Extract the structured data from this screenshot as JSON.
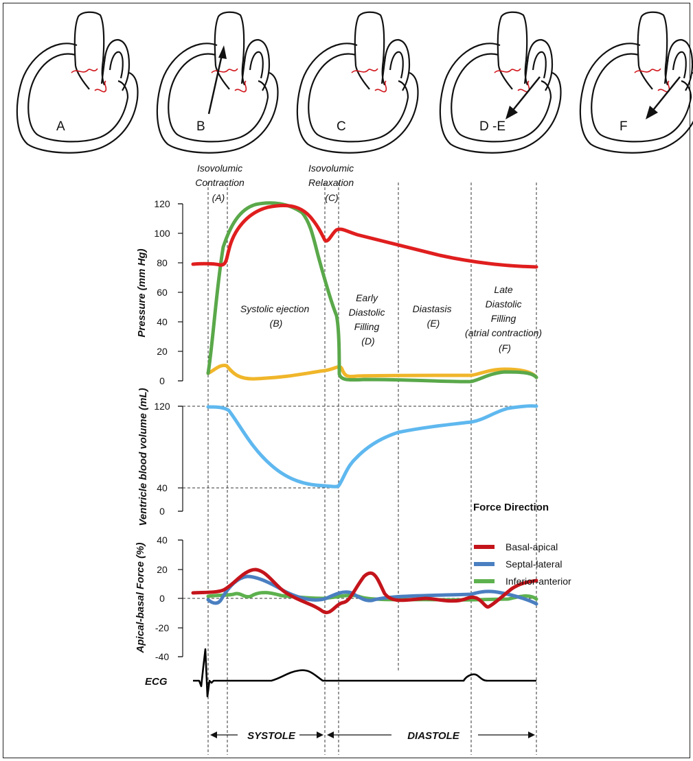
{
  "hearts": [
    {
      "label": "A",
      "arrow": "none"
    },
    {
      "label": "B",
      "arrow": "up"
    },
    {
      "label": "C",
      "arrow": "none"
    },
    {
      "label": "D -E",
      "arrow": "down"
    },
    {
      "label": "F",
      "arrow": "down"
    }
  ],
  "phases": {
    "isovolumic_contraction": [
      "Isovolumic",
      "Contraction",
      "(A)"
    ],
    "isovolumic_relaxation": [
      "Isovolumic",
      "Relaxation",
      "(C)"
    ],
    "systolic_ejection": [
      "Systolic ejection",
      "(B)"
    ],
    "early_diastolic": [
      "Early",
      "Diastolic",
      "Filling",
      "(D)"
    ],
    "diastasis": [
      "Diastasis",
      "(E)"
    ],
    "late_diastolic": [
      "Late",
      "Diastolic",
      "Filling",
      "(atrial contraction)",
      "(F)"
    ]
  },
  "pressure": {
    "ylabel": "Pressure (mm Hg)",
    "ticks": [
      "120",
      "100",
      "80",
      "60",
      "40",
      "20",
      "0"
    ]
  },
  "volume": {
    "ylabel": "Ventricle blood volume (mL)",
    "ticks": [
      "120",
      "40",
      "0"
    ]
  },
  "force": {
    "ylabel": "Apical-basal Force (%)",
    "ticks": [
      "40",
      "20",
      "0",
      "-20",
      "-40"
    ],
    "legend_title": "Force Direction",
    "legend": [
      {
        "name": "Basal-apical",
        "color": "#c4141b"
      },
      {
        "name": "Septal-lateral",
        "color": "#4a7fc1"
      },
      {
        "name": "Inferior-anterior",
        "color": "#5db14e"
      }
    ]
  },
  "ecg_label": "ECG",
  "cycle": {
    "systole": "SYSTOLE",
    "diastole": "DIASTOLE"
  },
  "colors": {
    "aortic_pressure": "#e01e1e",
    "ventricular_pressure": "#5aa84a",
    "atrial_pressure": "#f0b62a",
    "volume": "#5fb8ef",
    "ecg": "#000000"
  }
}
